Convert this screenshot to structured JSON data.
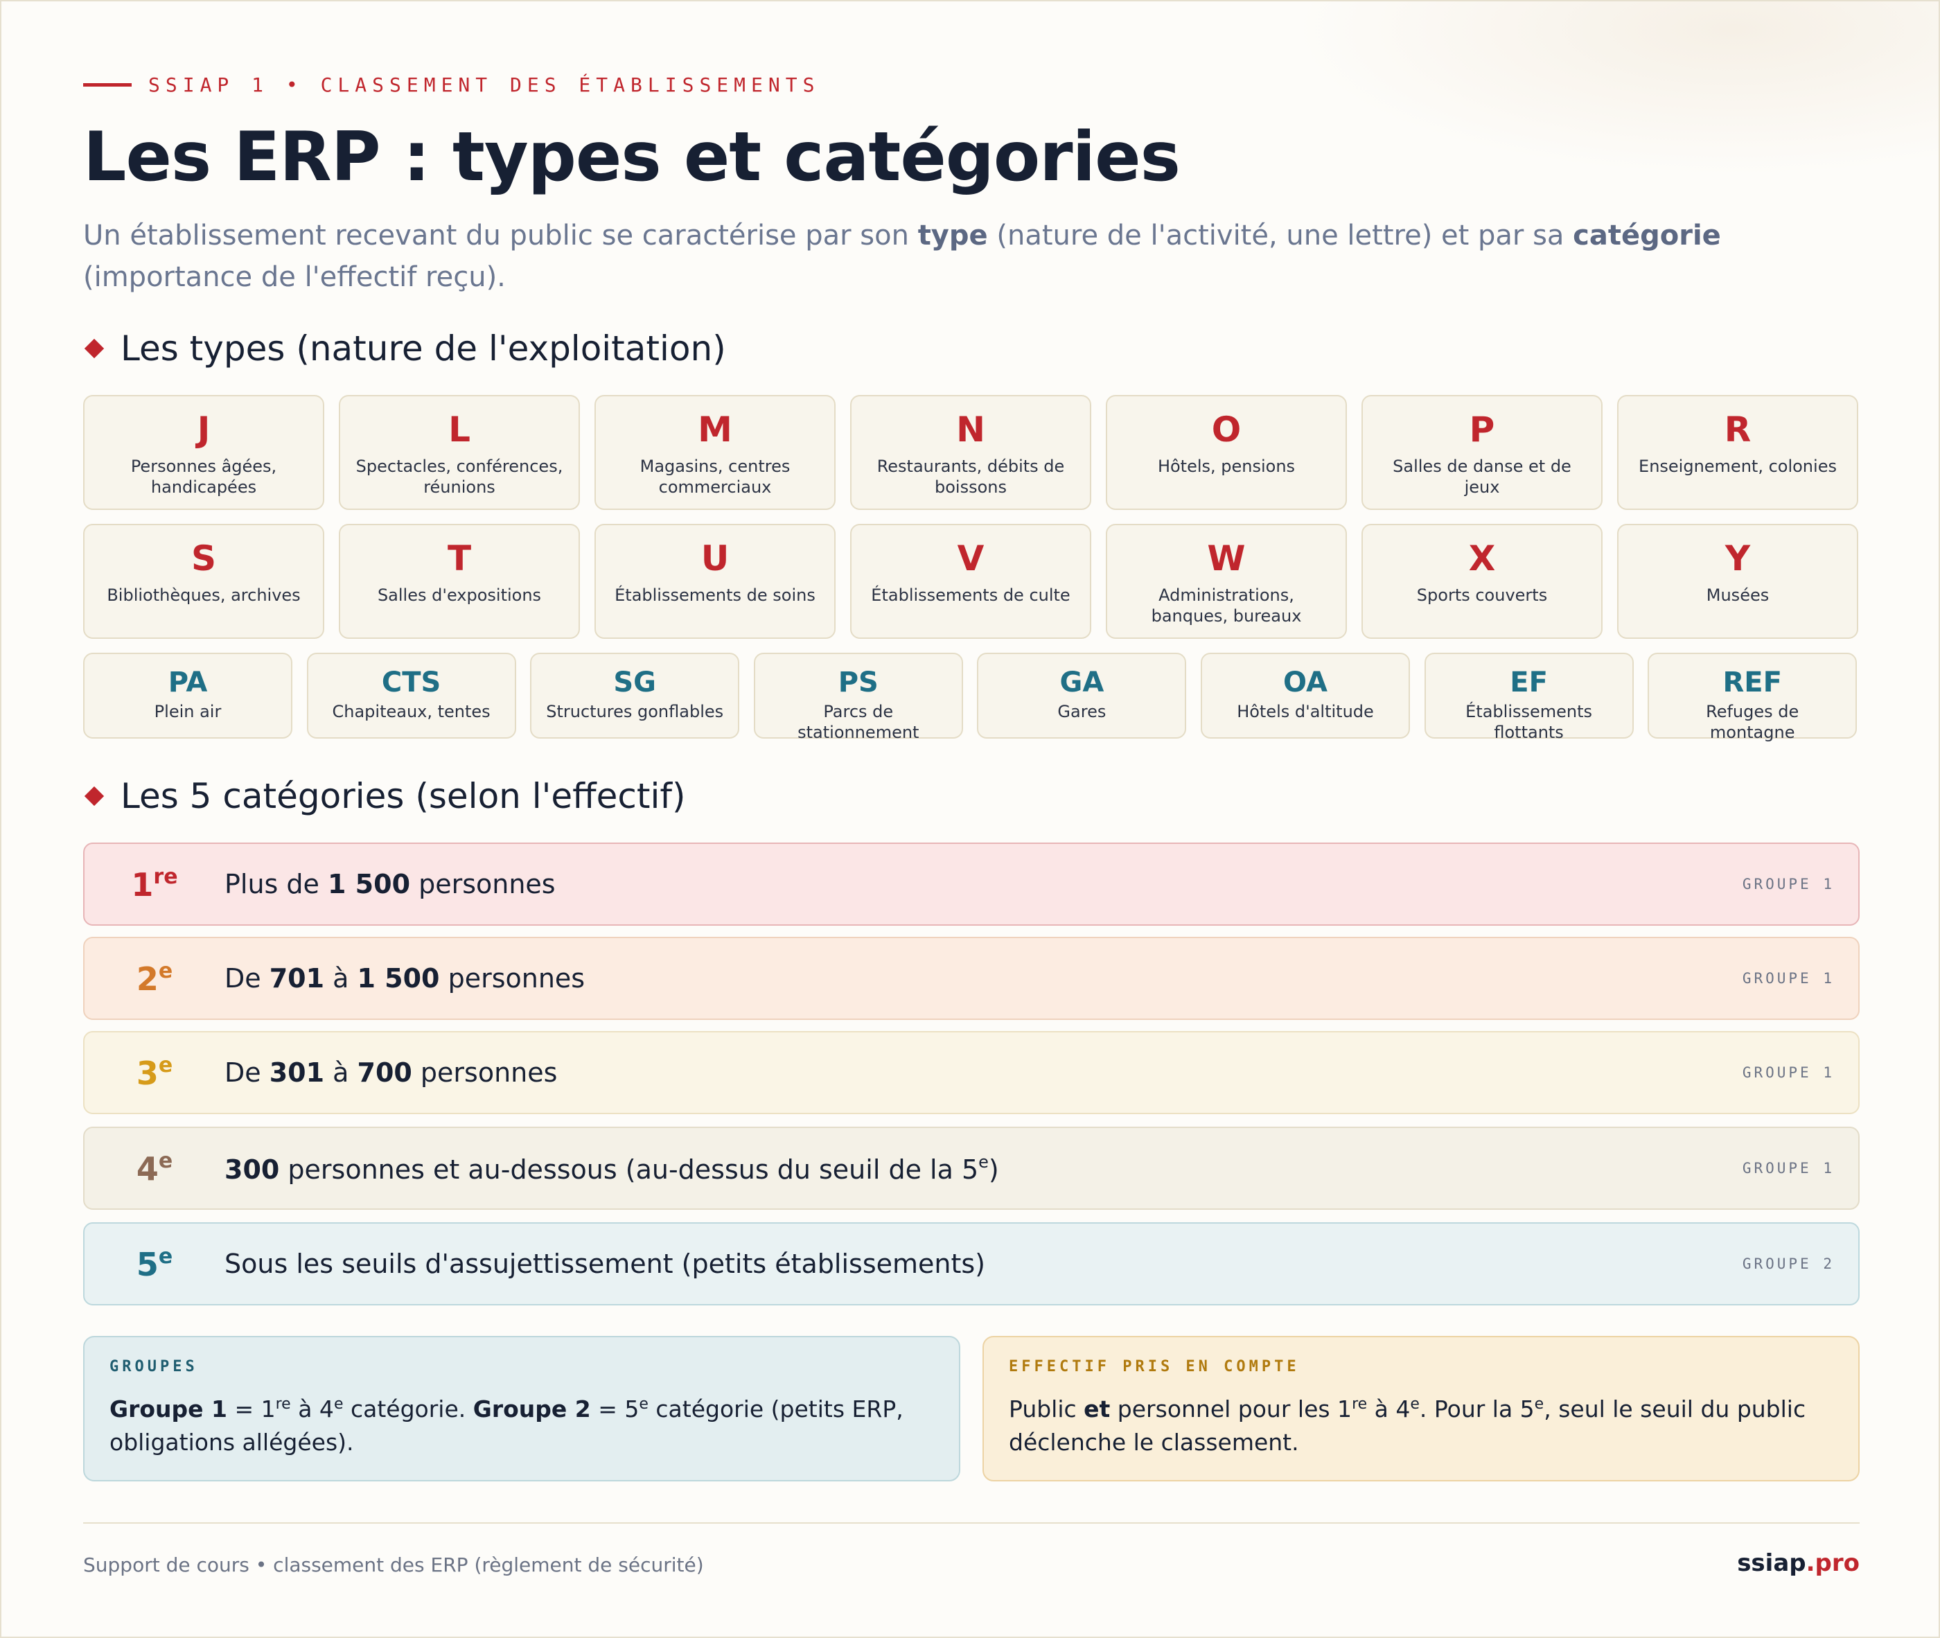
{
  "header": {
    "eyebrow": "SSIAP 1 • CLASSEMENT DES ÉTABLISSEMENTS",
    "title": "Les ERP : types et catégories",
    "intro_1": "Un établissement recevant du public se caractérise par son ",
    "intro_type": "type",
    "intro_2": " (nature de l'activité, une lettre) et par sa ",
    "intro_cat": "catégorie",
    "intro_3": " (importance de l'effectif reçu)."
  },
  "types_section": {
    "title": "Les types (nature de l'exploitation)",
    "row1": [
      {
        "code": "J",
        "desc": "Personnes âgées, handicapées"
      },
      {
        "code": "L",
        "desc": "Spectacles, conférences, réunions"
      },
      {
        "code": "M",
        "desc": "Magasins, centres commerciaux"
      },
      {
        "code": "N",
        "desc": "Restaurants, débits de boissons"
      },
      {
        "code": "O",
        "desc": "Hôtels, pensions"
      },
      {
        "code": "P",
        "desc": "Salles de danse et de jeux"
      },
      {
        "code": "R",
        "desc": "Enseignement, colonies"
      }
    ],
    "row2": [
      {
        "code": "S",
        "desc": "Bibliothèques, archives"
      },
      {
        "code": "T",
        "desc": "Salles d'expositions"
      },
      {
        "code": "U",
        "desc": "Établissements de soins"
      },
      {
        "code": "V",
        "desc": "Établissements de culte"
      },
      {
        "code": "W",
        "desc": "Administrations, banques, bureaux"
      },
      {
        "code": "X",
        "desc": "Sports couverts"
      },
      {
        "code": "Y",
        "desc": "Musées"
      }
    ],
    "special": [
      {
        "code": "PA",
        "desc": "Plein air"
      },
      {
        "code": "CTS",
        "desc": "Chapiteaux, tentes"
      },
      {
        "code": "SG",
        "desc": "Structures gonflables"
      },
      {
        "code": "PS",
        "desc": "Parcs de stationnement"
      },
      {
        "code": "GA",
        "desc": "Gares"
      },
      {
        "code": "OA",
        "desc": "Hôtels d'altitude"
      },
      {
        "code": "EF",
        "desc": "Établissements flottants"
      },
      {
        "code": "REF",
        "desc": "Refuges de montagne"
      }
    ]
  },
  "categories_section": {
    "title": "Les 5 catégories (selon l'effectif)",
    "items": [
      {
        "num": "1",
        "sup": "re",
        "a": "Plus de ",
        "b": "1 500",
        "c": " personnes",
        "group": "GROUPE 1",
        "color": "#c0262d",
        "bg": "#fbe6e6",
        "border": "#e7b5b7"
      },
      {
        "num": "2",
        "sup": "e",
        "a": "De ",
        "b": "701",
        "c": " à ",
        "d": "1 500",
        "e": " personnes",
        "group": "GROUPE 1",
        "color": "#d3792a",
        "bg": "#fcece1",
        "border": "#efd2bd"
      },
      {
        "num": "3",
        "sup": "e",
        "a": "De ",
        "b": "301",
        "c": " à ",
        "d": "700",
        "e": " personnes",
        "group": "GROUPE 1",
        "color": "#d69b1a",
        "bg": "#faf5e6",
        "border": "#ece1c3"
      },
      {
        "num": "4",
        "sup": "e",
        "b": "300",
        "c": " personnes et au-dessous (au-dessus du seuil de la 5",
        "csup": "e",
        "d": ")",
        "group": "GROUPE 1",
        "color": "#8c6a55",
        "bg": "#f4f1e7",
        "border": "#e3dcc9"
      },
      {
        "num": "5",
        "sup": "e",
        "a": "Sous les seuils d'assujettissement (petits établissements)",
        "group": "GROUPE 2",
        "color": "#1f6f86",
        "bg": "#e9f2f3",
        "border": "#bdd8dd"
      }
    ]
  },
  "boxes": {
    "groups": {
      "title": "GROUPES",
      "g1": "Groupe 1",
      "t1": " = 1",
      "s1": "re",
      "t2": " à 4",
      "s2": "e",
      "t3": " catégorie. ",
      "g2": "Groupe 2",
      "t4": " = 5",
      "s3": "e",
      "t5": " catégorie (petits ERP, obligations allégées).",
      "title_color": "#1f5d70"
    },
    "effectif": {
      "title": "EFFECTIF PRIS EN COMPTE",
      "t1": "Public ",
      "b1": "et",
      "t2": " personnel pour les 1",
      "s1": "re",
      "t3": " à 4",
      "s2": "e",
      "t4": ". Pour la 5",
      "s3": "e",
      "t5": ", seul le seuil du public déclenche le classement.",
      "title_color": "#b07a0e"
    }
  },
  "footer": {
    "left": "Support de cours • classement des ERP (règlement de sécurité)",
    "brand_main": "ssiap",
    "brand_accent": ".pro"
  }
}
